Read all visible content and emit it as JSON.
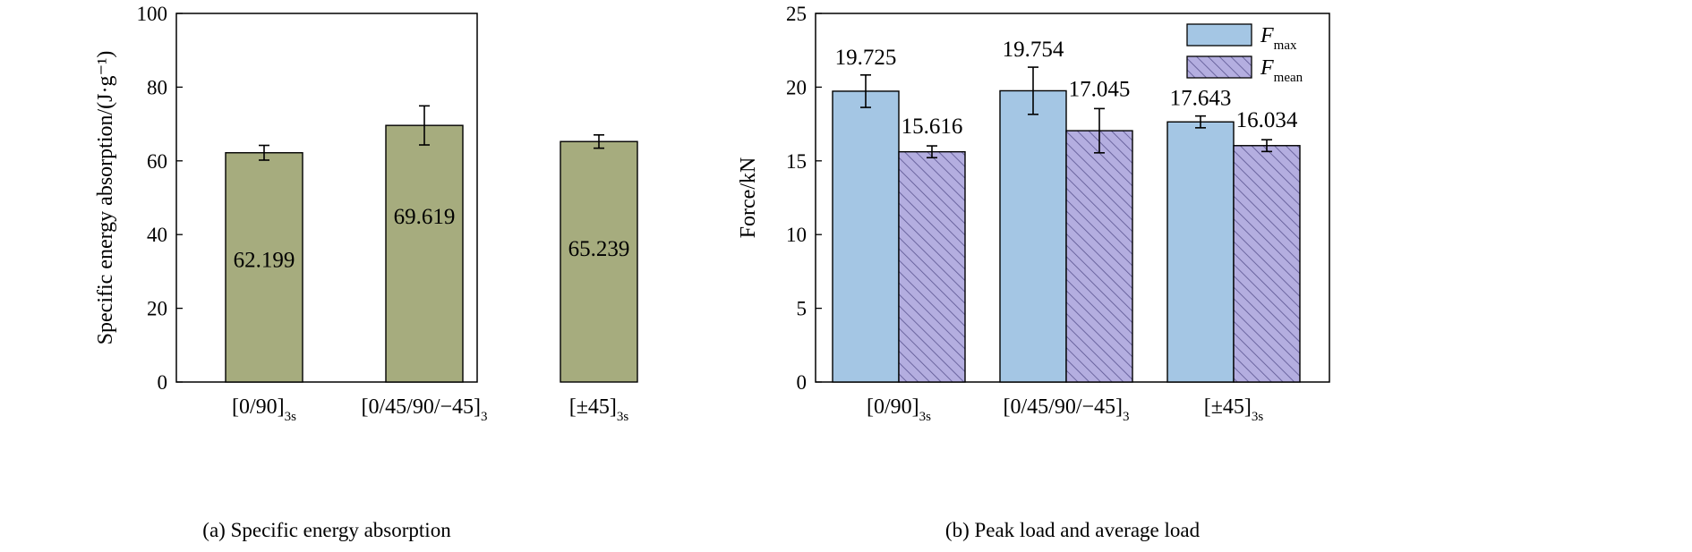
{
  "chart_data": [
    {
      "type": "bar",
      "caption": "(a) Specific energy absorption",
      "ylabel": "Specific energy absorption/(J·g⁻¹)",
      "ylim": [
        0,
        100
      ],
      "yticks": [
        0,
        20,
        40,
        60,
        80,
        100
      ],
      "categories": [
        {
          "main": "[0/90]",
          "sub": "3s"
        },
        {
          "main": "[0/45/90/−45]",
          "sub": "3"
        },
        {
          "main": "[±45]",
          "sub": "3s"
        }
      ],
      "series": [
        {
          "values": [
            62.199,
            69.619,
            65.239
          ],
          "labels": [
            "62.199",
            "69.619",
            "65.239"
          ],
          "errors": [
            2.0,
            5.3,
            1.8
          ],
          "color": "#a6ac7e"
        }
      ]
    },
    {
      "type": "bar",
      "caption": "(b)  Peak load and average load",
      "ylabel": "Force/kN",
      "ylim": [
        0,
        25
      ],
      "yticks": [
        0,
        5,
        10,
        15,
        20,
        25
      ],
      "categories": [
        {
          "main": "[0/90]",
          "sub": "3s"
        },
        {
          "main": "[0/45/90/−45]",
          "sub": "3"
        },
        {
          "main": "[±45]",
          "sub": "3s"
        }
      ],
      "legend_position": "top-right",
      "series": [
        {
          "name": "F",
          "name_sub": "max",
          "values": [
            19.725,
            19.754,
            17.643
          ],
          "labels": [
            "19.725",
            "19.754",
            "17.643"
          ],
          "errors": [
            1.1,
            1.6,
            0.4
          ],
          "color": "#a4c6e4"
        },
        {
          "name": "F",
          "name_sub": "mean",
          "values": [
            15.616,
            17.045,
            16.034
          ],
          "labels": [
            "15.616",
            "17.045",
            "16.034"
          ],
          "errors": [
            0.4,
            1.5,
            0.4
          ],
          "color": "#b4aee0",
          "hatch": true
        }
      ]
    }
  ]
}
